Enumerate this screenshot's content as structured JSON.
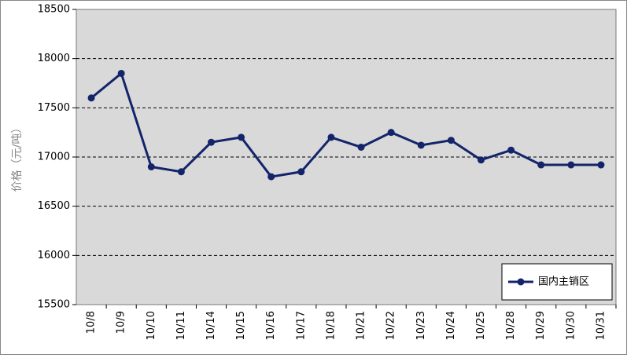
{
  "chart_data": {
    "type": "line",
    "y_label": "价格（元/吨）",
    "categories": [
      "10/8",
      "10/9",
      "10/10",
      "10/11",
      "10/14",
      "10/15",
      "10/16",
      "10/17",
      "10/18",
      "10/21",
      "10/22",
      "10/23",
      "10/24",
      "10/25",
      "10/28",
      "10/29",
      "10/30",
      "10/31"
    ],
    "series": [
      {
        "name": "国内主销区",
        "color": "#13246b",
        "values": [
          17600,
          17850,
          16900,
          16850,
          17150,
          17200,
          16800,
          16850,
          17200,
          17100,
          17250,
          17120,
          17170,
          16970,
          17070,
          16920,
          16920,
          16920
        ]
      }
    ],
    "ylim": [
      15500,
      18500
    ],
    "yticks": [
      15500,
      16000,
      16500,
      17000,
      17500,
      18000,
      18500
    ],
    "grid": true,
    "legend": "bottom-right"
  }
}
